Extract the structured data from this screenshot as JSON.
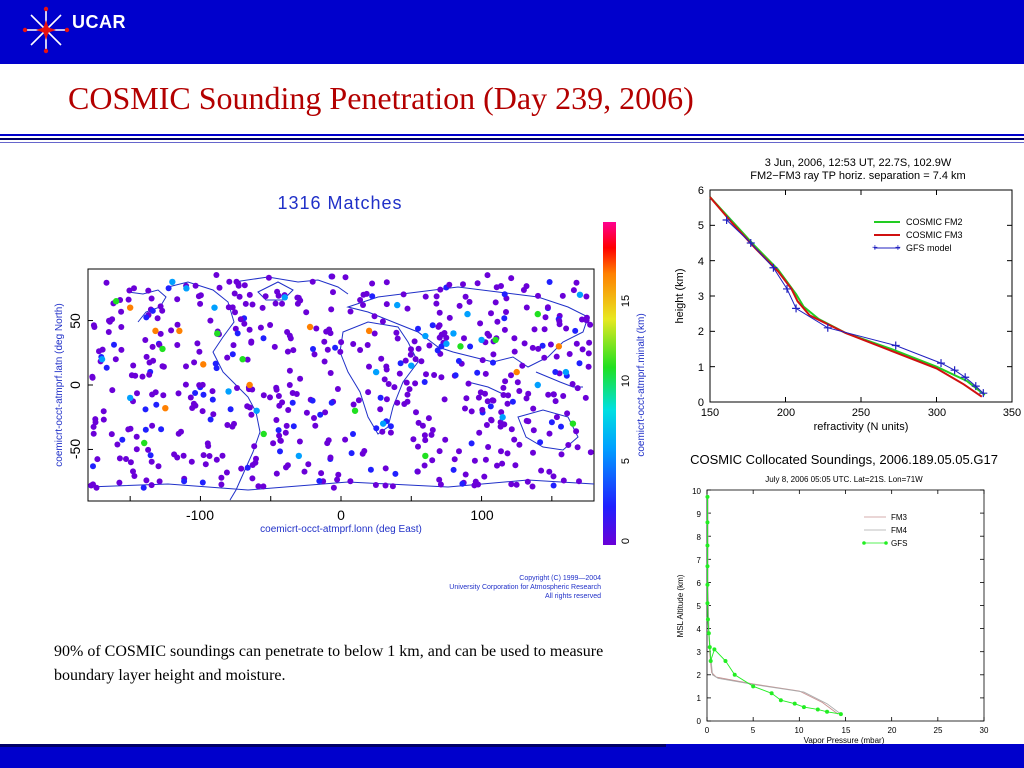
{
  "header": {
    "brand": "UCAR"
  },
  "slide": {
    "title": "COSMIC Sounding Penetration (Day 239, 2006)",
    "caption": "90% of COSMIC soundings can penetrate to below 1 km, and can be used to measure boundary layer height and moisture."
  },
  "colors": {
    "bar": "#0000cc",
    "title": "#b30000",
    "fm2": "#22cc22",
    "fm3": "#d01010",
    "gfs": "#2020c0",
    "gfs_green": "#22ee22",
    "map": "#2030c8"
  },
  "chart_data": [
    {
      "type": "scatter",
      "title": "1316 Matches",
      "xlabel": "coemicrt-occt-atmprf.lonn (deg East)",
      "ylabel": "coemicrt-occt-atmprf.latn (deg North)",
      "xlim": [
        -180,
        180
      ],
      "ylim": [
        -90,
        90
      ],
      "xticks": [
        "-100",
        "0",
        "100"
      ],
      "yticks": [
        "-50",
        "0",
        "50"
      ],
      "colorbar": {
        "label": "coemicrt-occt-atmprf.minalt (km)",
        "ticks": [
          "0",
          "5",
          "10",
          "15"
        ],
        "range": [
          0,
          18
        ]
      },
      "copyright": [
        "Copyright (C) 1999—2004",
        "University Corporation for Atmospheric Research",
        "All rights reserved"
      ],
      "points": [
        {
          "x": -150,
          "y": 60,
          "z": 16
        },
        {
          "x": -132,
          "y": 42,
          "z": 16
        },
        {
          "x": -115,
          "y": 42,
          "z": 16
        },
        {
          "x": -98,
          "y": 16,
          "z": 16
        },
        {
          "x": -65,
          "y": 0,
          "z": 16
        },
        {
          "x": 20,
          "y": 42,
          "z": 16
        },
        {
          "x": 125,
          "y": 10,
          "z": 16
        },
        {
          "x": -22,
          "y": 45,
          "z": 16
        },
        {
          "x": -125,
          "y": -18,
          "z": 16
        },
        {
          "x": 155,
          "y": 30,
          "z": 16
        },
        {
          "x": -160,
          "y": 65,
          "z": 11
        },
        {
          "x": -127,
          "y": 28,
          "z": 11
        },
        {
          "x": -88,
          "y": 40,
          "z": 11
        },
        {
          "x": 110,
          "y": 35,
          "z": 11
        },
        {
          "x": 85,
          "y": 30,
          "z": 11
        },
        {
          "x": 10,
          "y": -20,
          "z": 11
        },
        {
          "x": -55,
          "y": -38,
          "z": 11
        },
        {
          "x": 165,
          "y": -30,
          "z": 11
        },
        {
          "x": 60,
          "y": -55,
          "z": 11
        },
        {
          "x": -140,
          "y": -45,
          "z": 11
        },
        {
          "x": 140,
          "y": 55,
          "z": 11
        },
        {
          "x": -70,
          "y": 20,
          "z": 11
        },
        {
          "x": -110,
          "y": 75,
          "z": 5
        },
        {
          "x": -90,
          "y": 60,
          "z": 5
        },
        {
          "x": -40,
          "y": 68,
          "z": 5
        },
        {
          "x": 40,
          "y": 62,
          "z": 5
        },
        {
          "x": 90,
          "y": 55,
          "z": 5
        },
        {
          "x": 100,
          "y": 35,
          "z": 5
        },
        {
          "x": 80,
          "y": 40,
          "z": 5
        },
        {
          "x": 75,
          "y": 32,
          "z": 5
        },
        {
          "x": 60,
          "y": 38,
          "z": 5
        },
        {
          "x": 140,
          "y": 0,
          "z": 5
        },
        {
          "x": 115,
          "y": -25,
          "z": 5
        },
        {
          "x": -60,
          "y": -20,
          "z": 5
        },
        {
          "x": 25,
          "y": 10,
          "z": 5
        },
        {
          "x": 30,
          "y": -30,
          "z": 5
        },
        {
          "x": -170,
          "y": 20,
          "z": 5
        },
        {
          "x": -150,
          "y": -10,
          "z": 5
        },
        {
          "x": 160,
          "y": 10,
          "z": 5
        },
        {
          "x": -80,
          "y": -5,
          "z": 5
        },
        {
          "x": -30,
          "y": -55,
          "z": 5
        },
        {
          "x": 50,
          "y": 15,
          "z": 5
        },
        {
          "x": -120,
          "y": 80,
          "z": 5
        },
        {
          "x": 170,
          "y": 70,
          "z": 5
        }
      ]
    },
    {
      "type": "line",
      "title": "3 Jun, 2006, 12:53 UT, 22.7S, 102.9W",
      "subtitle": "FM2−FM3 ray TP horiz. separation = 7.4 km",
      "xlabel": "refractivity (N units)",
      "ylabel": "height (km)",
      "xlim": [
        150,
        350
      ],
      "ylim": [
        0,
        6
      ],
      "xticks": [
        "150",
        "200",
        "250",
        "300",
        "350"
      ],
      "yticks": [
        "0",
        "1",
        "2",
        "3",
        "4",
        "5",
        "6"
      ],
      "series": [
        {
          "name": "COSMIC FM2",
          "x": [
            150,
            165,
            180,
            195,
            207,
            212,
            222,
            240,
            270,
            300,
            320,
            332
          ],
          "y": [
            5.8,
            5.1,
            4.4,
            3.75,
            3.05,
            2.7,
            2.35,
            1.95,
            1.5,
            1.0,
            0.6,
            0.2
          ]
        },
        {
          "name": "COSMIC FM3",
          "x": [
            150,
            165,
            180,
            195,
            204,
            208,
            216,
            240,
            270,
            300,
            318,
            330
          ],
          "y": [
            5.8,
            5.05,
            4.35,
            3.7,
            3.2,
            2.85,
            2.45,
            1.95,
            1.45,
            0.95,
            0.5,
            0.15
          ]
        },
        {
          "name": "GFS model",
          "x": [
            161,
            177,
            192,
            201,
            207,
            228,
            273,
            303,
            312,
            319,
            326,
            331
          ],
          "y": [
            5.15,
            4.5,
            3.8,
            3.2,
            2.65,
            2.1,
            1.6,
            1.1,
            0.9,
            0.7,
            0.45,
            0.25
          ]
        }
      ]
    },
    {
      "type": "line",
      "title": "COSMIC Collocated Soundings, 2006.189.05.05.G17",
      "subtitle": "July 8, 2006 05:05 UTC.  Lat=21S. Lon=71W",
      "xlabel": "Vapor Pressure (mbar)",
      "ylabel": "MSL Altitude (km)",
      "xlim": [
        0,
        30
      ],
      "ylim": [
        0,
        10
      ],
      "xticks": [
        "0",
        "5",
        "10",
        "15",
        "20",
        "25",
        "30"
      ],
      "yticks": [
        "0",
        "1",
        "2",
        "3",
        "4",
        "5",
        "6",
        "7",
        "8",
        "9",
        "10"
      ],
      "series": [
        {
          "name": "FM3",
          "x": [
            0.1,
            0.1,
            0.2,
            0.3,
            0.5,
            1.0,
            5,
            10,
            12.5,
            14.2
          ],
          "y": [
            9.6,
            6.0,
            4.0,
            2.9,
            2.1,
            1.9,
            1.6,
            1.3,
            0.8,
            0.3
          ]
        },
        {
          "name": "FM4",
          "x": [
            0.1,
            0.1,
            0.2,
            0.4,
            0.6,
            1.2,
            5.5,
            10.5,
            13.0,
            14.5
          ],
          "y": [
            9.6,
            6.0,
            4.0,
            2.8,
            2.0,
            1.85,
            1.55,
            1.25,
            0.75,
            0.3
          ]
        },
        {
          "name": "GFS",
          "x": [
            0.05,
            0.05,
            0.05,
            0.05,
            0.05,
            0.05,
            0.1,
            0.2,
            0.3,
            0.4,
            0.8,
            2.0,
            3.0,
            5.0,
            7.0,
            8.0,
            9.5,
            10.5,
            12.0,
            13.0,
            14.5
          ],
          "y": [
            9.7,
            8.6,
            7.6,
            6.7,
            5.9,
            5.1,
            4.4,
            3.8,
            3.2,
            2.6,
            3.1,
            2.6,
            2.0,
            1.5,
            1.2,
            0.9,
            0.75,
            0.6,
            0.5,
            0.4,
            0.3
          ]
        }
      ]
    }
  ]
}
